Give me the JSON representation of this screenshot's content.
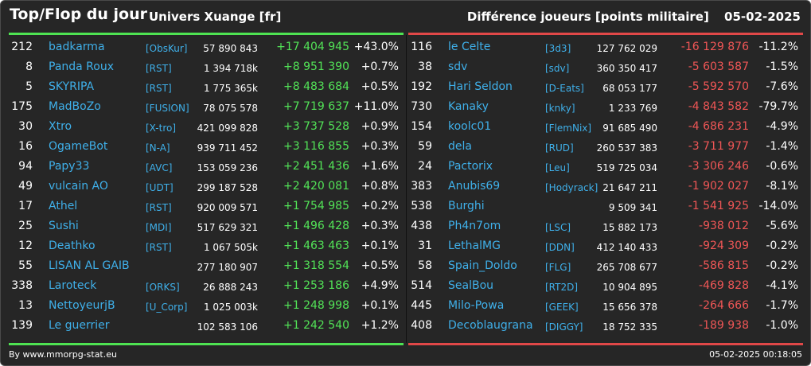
{
  "header": {
    "title": "Top/Flop du jour",
    "universe": "Univers Xuange [fr]",
    "subtitle": "Différence joueurs [points militaire]",
    "date": "05-02-2025"
  },
  "colors": {
    "background": "#262626",
    "name": "#3fb0ea",
    "positive": "#52e357",
    "negative": "#f05656",
    "top_bar": "#4ee352",
    "flop_bar": "#e04848"
  },
  "top": [
    {
      "rank": "212",
      "name": "badkarma",
      "alliance": "[ObsKur]",
      "points": "57 890 843",
      "diff": "+17 404 945",
      "pct": "+43.0%"
    },
    {
      "rank": "8",
      "name": "Panda Roux",
      "alliance": "[RST]",
      "points": "1 394 718k",
      "diff": "+8 951 390",
      "pct": "+0.7%"
    },
    {
      "rank": "5",
      "name": "SKYRIPA",
      "alliance": "[RST]",
      "points": "1 775 365k",
      "diff": "+8 483 684",
      "pct": "+0.5%"
    },
    {
      "rank": "175",
      "name": "MadBoZo",
      "alliance": "[FUSION]",
      "points": "78 075 578",
      "diff": "+7 719 637",
      "pct": "+11.0%"
    },
    {
      "rank": "30",
      "name": "Xtro",
      "alliance": "[X-tro]",
      "points": "421 099 828",
      "diff": "+3 737 528",
      "pct": "+0.9%"
    },
    {
      "rank": "16",
      "name": "OgameBot",
      "alliance": "[N-A]",
      "points": "939 711 452",
      "diff": "+3 116 855",
      "pct": "+0.3%"
    },
    {
      "rank": "94",
      "name": "Papy33",
      "alliance": "[AVC]",
      "points": "153 059 236",
      "diff": "+2 451 436",
      "pct": "+1.6%"
    },
    {
      "rank": "49",
      "name": "vulcain AO",
      "alliance": "[UDT]",
      "points": "299 187 528",
      "diff": "+2 420 081",
      "pct": "+0.8%"
    },
    {
      "rank": "17",
      "name": "Athel",
      "alliance": "[RST]",
      "points": "920 009 571",
      "diff": "+1 754 985",
      "pct": "+0.2%"
    },
    {
      "rank": "25",
      "name": "Sushi",
      "alliance": "[MDI]",
      "points": "517 629 321",
      "diff": "+1 496 428",
      "pct": "+0.3%"
    },
    {
      "rank": "12",
      "name": "Deathko",
      "alliance": "[RST]",
      "points": "1 067 505k",
      "diff": "+1 463 463",
      "pct": "+0.1%"
    },
    {
      "rank": "55",
      "name": "LISAN AL GAIB",
      "alliance": "",
      "points": "277 180 907",
      "diff": "+1 318 554",
      "pct": "+0.5%"
    },
    {
      "rank": "338",
      "name": "Laroteck",
      "alliance": "[ORKS]",
      "points": "26 888 243",
      "diff": "+1 253 186",
      "pct": "+4.9%"
    },
    {
      "rank": "13",
      "name": "NettoyeurjB",
      "alliance": "[U_Corp]",
      "points": "1 025 003k",
      "diff": "+1 248 998",
      "pct": "+0.1%"
    },
    {
      "rank": "139",
      "name": "Le guerrier",
      "alliance": "",
      "points": "102 583 106",
      "diff": "+1 242 540",
      "pct": "+1.2%"
    }
  ],
  "flop": [
    {
      "rank": "116",
      "name": "le Celte",
      "alliance": "[3d3]",
      "points": "127 762 029",
      "diff": "-16 129 876",
      "pct": "-11.2%"
    },
    {
      "rank": "38",
      "name": "sdv",
      "alliance": "[sdv]",
      "points": "360 350 417",
      "diff": "-5 603 587",
      "pct": "-1.5%"
    },
    {
      "rank": "192",
      "name": "Hari Seldon",
      "alliance": "[D-Eats]",
      "points": "68 053 177",
      "diff": "-5 592 570",
      "pct": "-7.6%"
    },
    {
      "rank": "730",
      "name": "Kanaky",
      "alliance": "[knky]",
      "points": "1 233 769",
      "diff": "-4 843 582",
      "pct": "-79.7%"
    },
    {
      "rank": "154",
      "name": "koolc01",
      "alliance": "[FlemNix]",
      "points": "91 685 490",
      "diff": "-4 686 231",
      "pct": "-4.9%"
    },
    {
      "rank": "59",
      "name": "dela",
      "alliance": "[RUD]",
      "points": "260 537 383",
      "diff": "-3 711 977",
      "pct": "-1.4%"
    },
    {
      "rank": "24",
      "name": "Pactorix",
      "alliance": "[Leu]",
      "points": "519 725 034",
      "diff": "-3 306 246",
      "pct": "-0.6%"
    },
    {
      "rank": "383",
      "name": "Anubis69",
      "alliance": "[Hodyrack]",
      "points": "21 647 211",
      "diff": "-1 902 027",
      "pct": "-8.1%"
    },
    {
      "rank": "538",
      "name": "Burghi",
      "alliance": "",
      "points": "9 509 341",
      "diff": "-1 541 925",
      "pct": "-14.0%"
    },
    {
      "rank": "438",
      "name": "Ph4n7om",
      "alliance": "[LSC]",
      "points": "15 882 173",
      "diff": "-938 012",
      "pct": "-5.6%"
    },
    {
      "rank": "31",
      "name": "LethalMG",
      "alliance": "[DDN]",
      "points": "412 140 433",
      "diff": "-924 309",
      "pct": "-0.2%"
    },
    {
      "rank": "58",
      "name": "Spain_Doldo",
      "alliance": "[FLG]",
      "points": "265 708 677",
      "diff": "-586 815",
      "pct": "-0.2%"
    },
    {
      "rank": "514",
      "name": "SealBou",
      "alliance": "[RT2D]",
      "points": "10 904 895",
      "diff": "-469 828",
      "pct": "-4.1%"
    },
    {
      "rank": "445",
      "name": "Milo-Powa",
      "alliance": "[GEEK]",
      "points": "15 656 378",
      "diff": "-264 666",
      "pct": "-1.7%"
    },
    {
      "rank": "408",
      "name": "Decoblaugrana",
      "alliance": "[DIGGY]",
      "points": "18 752 335",
      "diff": "-189 938",
      "pct": "-1.0%"
    }
  ],
  "footer": {
    "credit": "By www.mmorpg-stat.eu",
    "timestamp": "05-02-2025 00:18:05"
  }
}
